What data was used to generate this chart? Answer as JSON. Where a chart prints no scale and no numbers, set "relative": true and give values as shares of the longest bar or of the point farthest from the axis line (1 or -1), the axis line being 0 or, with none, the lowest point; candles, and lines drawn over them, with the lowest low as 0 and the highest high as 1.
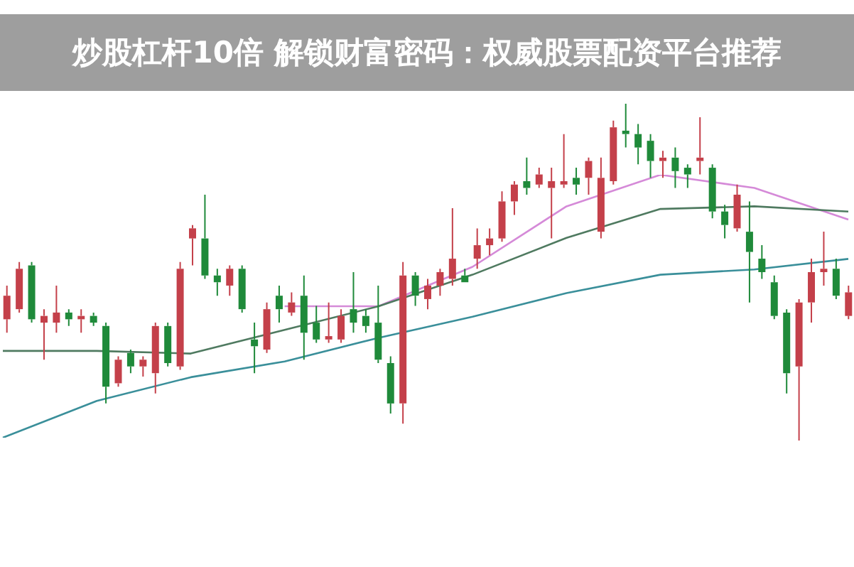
{
  "chart_data": [
    {
      "type": "candlestick",
      "title": "炒股杠杆10倍 解锁财富密码：权威股票配资平台推荐",
      "relative": true,
      "categories": [
        null,
        null,
        null,
        null,
        null,
        null,
        null,
        null,
        null,
        null,
        null,
        null,
        null,
        null,
        null,
        null,
        null,
        null,
        null,
        null,
        null,
        null,
        null,
        null,
        null,
        null,
        null,
        null,
        null,
        null,
        null,
        null,
        null,
        null,
        null,
        null,
        null,
        null,
        null,
        null,
        null,
        null,
        null,
        null,
        null,
        null,
        null,
        null,
        null,
        null,
        null,
        null,
        null,
        null,
        null,
        null,
        null,
        null,
        null,
        null,
        null,
        null,
        null,
        null,
        null,
        null,
        null,
        null,
        null
      ],
      "ohlc": [
        [
          0.36,
          0.46,
          0.32,
          0.43
        ],
        [
          0.39,
          0.53,
          0.38,
          0.51
        ],
        [
          0.52,
          0.53,
          0.35,
          0.36
        ],
        [
          0.35,
          0.39,
          0.24,
          0.37
        ],
        [
          0.35,
          0.46,
          0.32,
          0.38
        ],
        [
          0.38,
          0.39,
          0.34,
          0.36
        ],
        [
          0.36,
          0.39,
          0.32,
          0.37
        ],
        [
          0.37,
          0.38,
          0.34,
          0.35
        ],
        [
          0.34,
          0.35,
          0.11,
          0.16
        ],
        [
          0.17,
          0.25,
          0.16,
          0.24
        ],
        [
          0.26,
          0.27,
          0.2,
          0.22
        ],
        [
          0.22,
          0.25,
          0.19,
          0.24
        ],
        [
          0.2,
          0.35,
          0.14,
          0.34
        ],
        [
          0.34,
          0.35,
          0.22,
          0.23
        ],
        [
          0.22,
          0.53,
          0.21,
          0.51
        ],
        [
          0.6,
          0.64,
          0.52,
          0.63
        ],
        [
          0.6,
          0.73,
          0.48,
          0.49
        ],
        [
          0.49,
          0.51,
          0.43,
          0.47
        ],
        [
          0.46,
          0.52,
          0.43,
          0.51
        ],
        [
          0.51,
          0.52,
          0.38,
          0.39
        ],
        [
          0.3,
          0.35,
          0.2,
          0.28
        ],
        [
          0.27,
          0.41,
          0.26,
          0.39
        ],
        [
          0.43,
          0.46,
          0.35,
          0.39
        ],
        [
          0.38,
          0.44,
          0.37,
          0.41
        ],
        [
          0.43,
          0.49,
          0.24,
          0.32
        ],
        [
          0.35,
          0.4,
          0.29,
          0.3
        ],
        [
          0.3,
          0.41,
          0.29,
          0.31
        ],
        [
          0.3,
          0.39,
          0.29,
          0.37
        ],
        [
          0.39,
          0.5,
          0.32,
          0.35
        ],
        [
          0.37,
          0.39,
          0.32,
          0.34
        ],
        [
          0.35,
          0.46,
          0.23,
          0.24
        ],
        [
          0.23,
          0.25,
          0.08,
          0.11
        ],
        [
          0.11,
          0.53,
          0.05,
          0.49
        ],
        [
          0.49,
          0.5,
          0.4,
          0.43
        ],
        [
          0.42,
          0.48,
          0.39,
          0.46
        ],
        [
          0.46,
          0.51,
          0.43,
          0.5
        ],
        [
          0.48,
          0.69,
          0.46,
          0.54
        ],
        [
          0.49,
          0.51,
          0.47,
          0.47
        ],
        [
          0.54,
          0.63,
          0.51,
          0.58
        ],
        [
          0.58,
          0.63,
          0.55,
          0.6
        ],
        [
          0.6,
          0.74,
          0.59,
          0.71
        ],
        [
          0.71,
          0.77,
          0.67,
          0.76
        ],
        [
          0.77,
          0.84,
          0.73,
          0.75
        ],
        [
          0.76,
          0.81,
          0.75,
          0.79
        ],
        [
          0.75,
          0.81,
          0.6,
          0.77
        ],
        [
          0.76,
          0.91,
          0.75,
          0.77
        ],
        [
          0.78,
          0.81,
          0.73,
          0.76
        ],
        [
          0.78,
          0.84,
          0.73,
          0.83
        ],
        [
          0.62,
          0.84,
          0.6,
          0.78
        ],
        [
          0.77,
          0.95,
          0.76,
          0.93
        ],
        [
          0.92,
          1,
          0.87,
          0.91
        ],
        [
          0.91,
          0.94,
          0.82,
          0.87
        ],
        [
          0.89,
          0.91,
          0.78,
          0.83
        ],
        [
          0.83,
          0.86,
          0.78,
          0.84
        ],
        [
          0.84,
          0.87,
          0.75,
          0.8
        ],
        [
          0.81,
          0.82,
          0.75,
          0.79
        ],
        [
          0.83,
          0.96,
          0.79,
          0.84
        ],
        [
          0.81,
          0.82,
          0.66,
          0.68
        ],
        [
          0.68,
          0.7,
          0.6,
          0.64
        ],
        [
          0.63,
          0.76,
          0.62,
          0.73
        ],
        [
          0.62,
          0.71,
          0.41,
          0.56
        ],
        [
          0.54,
          0.58,
          0.48,
          0.5
        ],
        [
          0.47,
          0.49,
          0.36,
          0.37
        ],
        [
          0.38,
          0.39,
          0.14,
          0.2
        ],
        [
          0.22,
          0.42,
          0,
          0.41
        ],
        [
          0.41,
          0.54,
          0.35,
          0.5
        ],
        [
          0.5,
          0.62,
          0.46,
          0.51
        ],
        [
          0.51,
          0.54,
          0.42,
          0.43
        ],
        [
          0.37,
          0.46,
          0.36,
          0.44
        ]
      ]
    },
    {
      "type": "line",
      "relative": true,
      "categories": [
        null,
        null,
        null,
        null,
        null,
        null,
        null,
        null,
        null,
        null
      ],
      "series": [
        {
          "type": "line",
          "color": "#3a8f9a",
          "values": [
            0,
            0.14,
            0.23,
            0.29,
            0.38,
            0.46,
            0.55,
            0.62,
            0.64,
            0.68
          ]
        },
        {
          "type": "line",
          "color": "#4f7a60",
          "values": [
            0.33,
            0.33,
            0.32,
            0.41,
            0.5,
            0.62,
            0.76,
            0.87,
            0.88,
            0.86
          ]
        },
        {
          "type": "line",
          "color": "#d58ad8",
          "values": [
            null,
            null,
            null,
            0.5,
            0.5,
            0.65,
            0.88,
            1,
            0.95,
            0.83
          ]
        }
      ]
    }
  ]
}
